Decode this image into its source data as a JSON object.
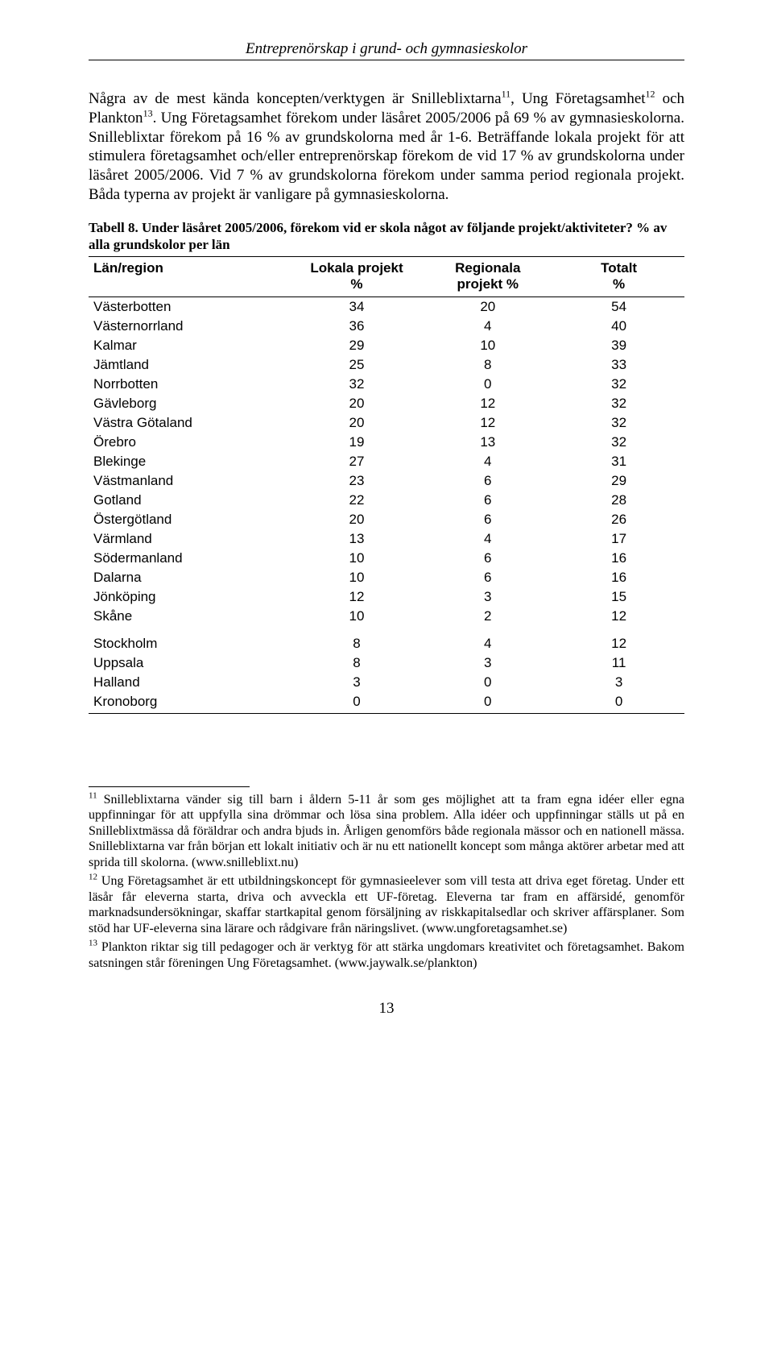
{
  "running_head": "Entreprenörskap i grund- och gymnasieskolor",
  "paragraph1_a": "Några av de mest kända koncepten/verktygen är Snilleblixtarna",
  "sup11": "11",
  "paragraph1_b": ", Ung Företagsamhet",
  "sup12": "12",
  "paragraph1_c": " och Plankton",
  "sup13": "13",
  "paragraph1_d": ". Ung Företagsamhet förekom under läsåret 2005/2006 på 69 % av gymnasieskolorna. Snilleblixtar förekom på 16 % av grundskolorna med år 1-6. Beträffande lokala projekt för att stimulera företagsamhet och/eller entreprenörskap förekom de vid 17 % av grundskolorna under läsåret 2005/2006. Vid 7 % av grundskolorna förekom under samma period regionala projekt. Båda typerna av projekt är vanligare på gymnasieskolorna.",
  "table_caption": "Tabell 8. Under läsåret 2005/2006, förekom vid er skola något av följande projekt/aktiviteter? % av alla grundskolor per län",
  "table": {
    "headers": {
      "region": "Län/region",
      "local_line1": "Lokala projekt",
      "local_line2": "%",
      "regional_line1": "Regionala",
      "regional_line2": "projekt %",
      "total_line1": "Totalt",
      "total_line2": "%"
    },
    "group1": [
      {
        "region": "Västerbotten",
        "local": "34",
        "regional": "20",
        "total": "54"
      },
      {
        "region": "Västernorrland",
        "local": "36",
        "regional": "4",
        "total": "40"
      },
      {
        "region": "Kalmar",
        "local": "29",
        "regional": "10",
        "total": "39"
      },
      {
        "region": "Jämtland",
        "local": "25",
        "regional": "8",
        "total": "33"
      },
      {
        "region": "Norrbotten",
        "local": "32",
        "regional": "0",
        "total": "32"
      },
      {
        "region": "Gävleborg",
        "local": "20",
        "regional": "12",
        "total": "32"
      },
      {
        "region": "Västra Götaland",
        "local": "20",
        "regional": "12",
        "total": "32"
      },
      {
        "region": "Örebro",
        "local": "19",
        "regional": "13",
        "total": "32"
      },
      {
        "region": "Blekinge",
        "local": "27",
        "regional": "4",
        "total": "31"
      },
      {
        "region": "Västmanland",
        "local": "23",
        "regional": "6",
        "total": "29"
      },
      {
        "region": "Gotland",
        "local": "22",
        "regional": "6",
        "total": "28"
      },
      {
        "region": "Östergötland",
        "local": "20",
        "regional": "6",
        "total": "26"
      },
      {
        "region": "Värmland",
        "local": "13",
        "regional": "4",
        "total": "17"
      },
      {
        "region": "Södermanland",
        "local": "10",
        "regional": "6",
        "total": "16"
      },
      {
        "region": "Dalarna",
        "local": "10",
        "regional": "6",
        "total": "16"
      },
      {
        "region": "Jönköping",
        "local": "12",
        "regional": "3",
        "total": "15"
      },
      {
        "region": "Skåne",
        "local": "10",
        "regional": "2",
        "total": "12"
      }
    ],
    "group2": [
      {
        "region": "Stockholm",
        "local": "8",
        "regional": "4",
        "total": "12"
      },
      {
        "region": "Uppsala",
        "local": "8",
        "regional": "3",
        "total": "11"
      },
      {
        "region": "Halland",
        "local": "3",
        "regional": "0",
        "total": "3"
      },
      {
        "region": "Kronoborg",
        "local": "0",
        "regional": "0",
        "total": "0"
      }
    ]
  },
  "footnotes": {
    "fn11_sup": "11",
    "fn11": " Snilleblixtarna vänder sig till barn i åldern 5-11 år som ges möjlighet att ta fram egna idéer eller egna uppfinningar för att uppfylla sina drömmar och lösa sina problem. Alla idéer och uppfinningar ställs ut på en Snilleblixtmässa då föräldrar och andra bjuds in. Årligen genomförs både regionala mässor och en nationell mässa. Snilleblixtarna var från början ett lokalt initiativ och är nu ett nationellt koncept som många aktörer arbetar med att sprida till skolorna. (www.snilleblixt.nu)",
    "fn12_sup": "12",
    "fn12": " Ung Företagsamhet är ett utbildningskoncept för gymnasieelever som vill testa att driva eget företag. Under ett läsår får eleverna starta, driva och avveckla ett UF-företag. Eleverna tar fram en affärsidé, genomför marknadsundersökningar, skaffar startkapital genom försäljning av riskkapitalsedlar och skriver affärsplaner. Som stöd har UF-eleverna sina lärare och rådgivare från näringslivet. (www.ungforetagsamhet.se)",
    "fn13_sup": "13",
    "fn13": " Plankton riktar sig till pedagoger och är verktyg för att stärka ungdomars kreativitet och företagsamhet. Bakom satsningen står föreningen Ung Företagsamhet. (www.jaywalk.se/plankton)"
  },
  "page_number": "13"
}
